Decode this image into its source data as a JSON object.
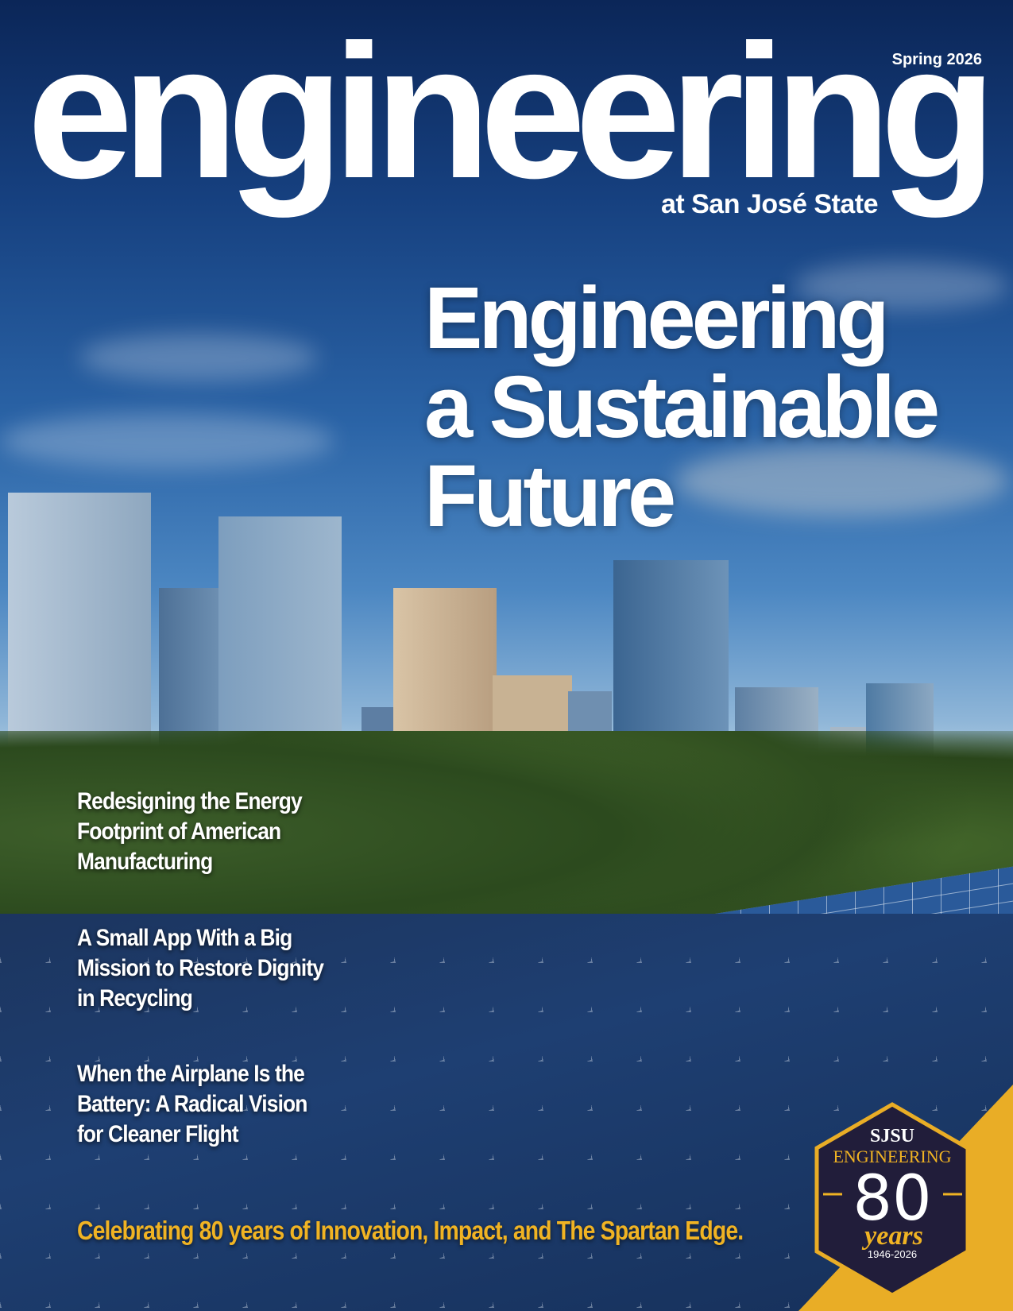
{
  "masthead": {
    "title": "engineering",
    "subtitle": "at San José State",
    "issue": "Spring 2026"
  },
  "headline": {
    "lines": [
      "Engineering",
      "a Sustainable",
      "Future"
    ]
  },
  "stories": [
    {
      "lines": [
        "Redesigning the Energy",
        "Footprint of American",
        "Manufacturing"
      ]
    },
    {
      "lines": [
        "A Small App With a Big",
        "Mission to Restore Dignity",
        "in Recycling"
      ]
    },
    {
      "lines": [
        "When the Airplane Is the",
        "Battery: A Radical Vision",
        "for Cleaner Flight"
      ]
    }
  ],
  "tagline": "Celebrating 80 years of Innovation, Impact, and The Spartan Edge.",
  "badge": {
    "org": "SJSU",
    "dept": "ENGINEERING",
    "number": "80",
    "word": "years",
    "range": "1946-2026"
  },
  "colors": {
    "gold": "#f0b323",
    "navy": "#211d3a",
    "sky": "#16407f"
  }
}
